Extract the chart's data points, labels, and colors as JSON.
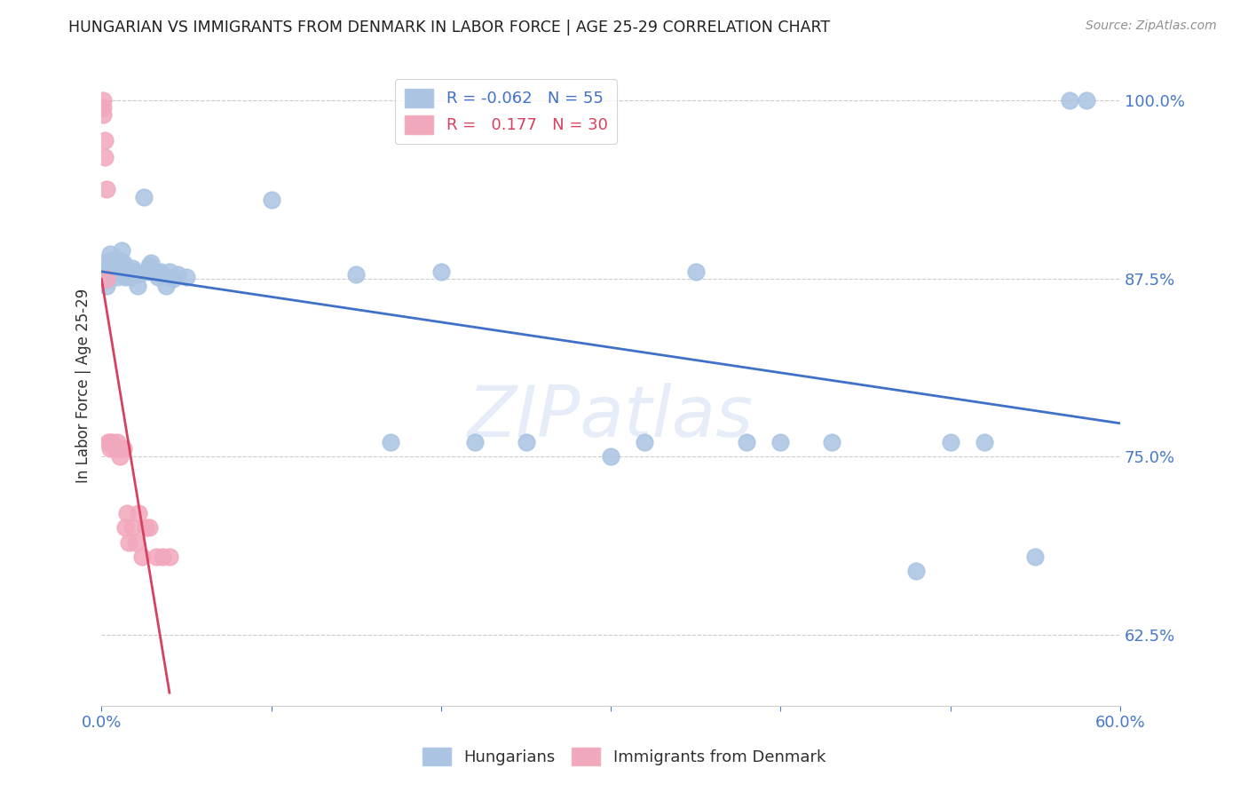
{
  "title": "HUNGARIAN VS IMMIGRANTS FROM DENMARK IN LABOR FORCE | AGE 25-29 CORRELATION CHART",
  "source": "Source: ZipAtlas.com",
  "ylabel": "In Labor Force | Age 25-29",
  "xlim": [
    0.0,
    0.6
  ],
  "ylim": [
    0.575,
    1.025
  ],
  "yticks": [
    0.625,
    0.75,
    0.875,
    1.0
  ],
  "ytick_labels": [
    "62.5%",
    "75.0%",
    "87.5%",
    "100.0%"
  ],
  "xticks": [
    0.0,
    0.1,
    0.2,
    0.3,
    0.4,
    0.5,
    0.6
  ],
  "xtick_labels": [
    "0.0%",
    "",
    "",
    "",
    "",
    "",
    "60.0%"
  ],
  "blue_R": -0.062,
  "blue_N": 55,
  "pink_R": 0.177,
  "pink_N": 30,
  "blue_color": "#aac4e2",
  "pink_color": "#f2a8bc",
  "blue_line_color": "#4070c8",
  "pink_line_color": "#d84060",
  "axis_color": "#4878c8",
  "grid_color": "#cccccc",
  "blue_x": [
    0.001,
    0.001,
    0.002,
    0.003,
    0.003,
    0.004,
    0.005,
    0.006,
    0.007,
    0.008,
    0.009,
    0.01,
    0.011,
    0.012,
    0.013,
    0.014,
    0.015,
    0.016,
    0.017,
    0.018,
    0.019,
    0.02,
    0.021,
    0.022,
    0.025,
    0.027,
    0.028,
    0.029,
    0.03,
    0.032,
    0.033,
    0.035,
    0.038,
    0.04,
    0.042,
    0.045,
    0.05,
    0.1,
    0.15,
    0.17,
    0.2,
    0.22,
    0.25,
    0.3,
    0.32,
    0.35,
    0.38,
    0.4,
    0.43,
    0.48,
    0.5,
    0.52,
    0.55,
    0.57,
    0.58
  ],
  "blue_y": [
    0.878,
    0.882,
    0.886,
    0.874,
    0.87,
    0.88,
    0.892,
    0.888,
    0.878,
    0.882,
    0.876,
    0.88,
    0.888,
    0.895,
    0.886,
    0.876,
    0.88,
    0.878,
    0.876,
    0.882,
    0.88,
    0.878,
    0.87,
    0.878,
    0.932,
    0.88,
    0.884,
    0.886,
    0.88,
    0.88,
    0.876,
    0.88,
    0.87,
    0.88,
    0.875,
    0.878,
    0.876,
    0.93,
    0.878,
    0.76,
    0.88,
    0.76,
    0.76,
    0.75,
    0.76,
    0.88,
    0.76,
    0.76,
    0.76,
    0.67,
    0.76,
    0.76,
    0.68,
    1.0,
    1.0
  ],
  "pink_x": [
    0.001,
    0.001,
    0.001,
    0.002,
    0.002,
    0.003,
    0.003,
    0.004,
    0.005,
    0.005,
    0.006,
    0.007,
    0.008,
    0.009,
    0.01,
    0.011,
    0.012,
    0.013,
    0.014,
    0.015,
    0.016,
    0.018,
    0.02,
    0.022,
    0.024,
    0.026,
    0.028,
    0.032,
    0.036,
    0.04
  ],
  "pink_y": [
    1.0,
    0.99,
    0.995,
    0.972,
    0.96,
    0.938,
    0.875,
    0.76,
    0.756,
    0.76,
    0.76,
    0.758,
    0.756,
    0.76,
    0.756,
    0.75,
    0.756,
    0.756,
    0.7,
    0.71,
    0.69,
    0.7,
    0.69,
    0.71,
    0.68,
    0.7,
    0.7,
    0.68,
    0.68,
    0.68
  ]
}
